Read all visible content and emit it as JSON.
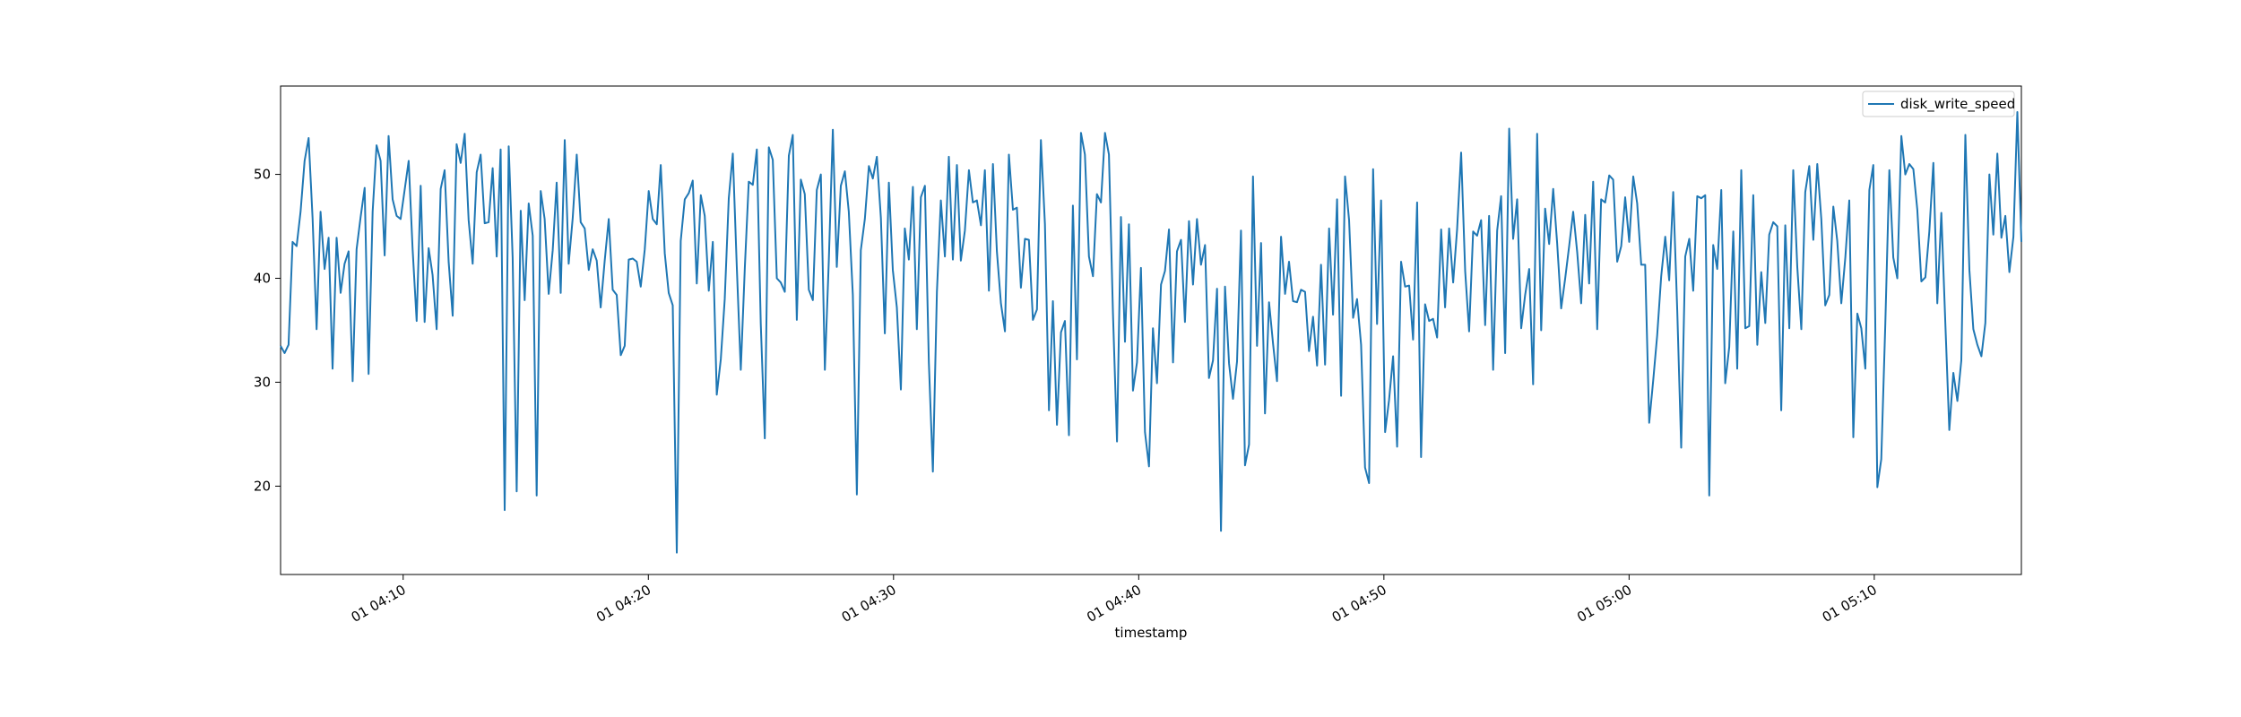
{
  "chart_data": {
    "type": "line",
    "title": "",
    "xlabel": "timestamp",
    "ylabel": "",
    "xlim": [
      "01 04:05",
      "01 05:16"
    ],
    "ylim": [
      11.5,
      58.5
    ],
    "x_tick_labels": [
      "01 04:10",
      "01 04:20",
      "01 04:30",
      "01 04:40",
      "01 04:50",
      "01 05:00",
      "01 05:10"
    ],
    "y_tick_labels": [
      "20",
      "30",
      "40",
      "50"
    ],
    "y_ticks": [
      20,
      30,
      40,
      50
    ],
    "grid": false,
    "legend_position": "top-right",
    "x_start": "01 04:05",
    "x_end": "01 05:16",
    "series": [
      {
        "name": "disk_write_speed",
        "color": "#1f77b4",
        "values": [
          33.5,
          32.8,
          33.6,
          43.5,
          43.1,
          46.4,
          51.3,
          53.5,
          45.8,
          35.1,
          46.4,
          40.9,
          43.9,
          31.3,
          43.9,
          38.6,
          41.4,
          42.6,
          30.1,
          42.8,
          45.9,
          48.7,
          30.8,
          46.4,
          52.8,
          51.3,
          42.2,
          53.7,
          47.6,
          46.0,
          45.7,
          48.5,
          51.3,
          42.8,
          35.9,
          48.9,
          35.8,
          42.9,
          40.3,
          35.1,
          48.6,
          50.4,
          41.6,
          36.4,
          52.9,
          51.1,
          53.9,
          45.6,
          41.4,
          50.2,
          51.9,
          45.3,
          45.4,
          50.6,
          42.1,
          52.4,
          17.7,
          52.7,
          42.0,
          19.5,
          46.5,
          37.9,
          47.2,
          44.1,
          19.1,
          48.4,
          45.7,
          38.5,
          42.7,
          49.2,
          38.6,
          53.3,
          41.4,
          45.8,
          51.9,
          45.4,
          44.8,
          40.8,
          42.8,
          41.7,
          37.2,
          41.7,
          45.7,
          38.9,
          38.4,
          32.6,
          33.5,
          41.8,
          41.9,
          41.6,
          39.2,
          42.8,
          48.4,
          45.7,
          45.2,
          50.9,
          42.4,
          38.6,
          37.4,
          13.6,
          43.6,
          47.6,
          48.2,
          49.4,
          39.5,
          48.0,
          46.0,
          38.8,
          43.5,
          28.8,
          32.2,
          38.0,
          47.7,
          52.0,
          41.2,
          31.2,
          41.0,
          49.3,
          49.0,
          52.4,
          35.6,
          24.6,
          52.6,
          51.4,
          40.0,
          39.6,
          38.7,
          51.8,
          53.8,
          36.0,
          49.5,
          48.1,
          38.9,
          37.9,
          48.5,
          50.0,
          31.2,
          41.7,
          54.3,
          41.1,
          48.9,
          50.3,
          46.4,
          38.4,
          19.2,
          42.7,
          45.7,
          50.8,
          49.6,
          51.7,
          45.8,
          34.7,
          49.2,
          40.8,
          37.2,
          29.3,
          44.8,
          41.8,
          48.8,
          35.1,
          47.8,
          48.9,
          31.9,
          21.4,
          38.7,
          47.5,
          42.1,
          51.7,
          41.8,
          50.9,
          41.7,
          44.6,
          50.4,
          47.3,
          47.5,
          45.1,
          50.4,
          38.8,
          51.0,
          42.6,
          37.6,
          34.9,
          51.9,
          46.6,
          46.8,
          39.1,
          43.8,
          43.7,
          36.0,
          37.0,
          53.3,
          45.2,
          27.3,
          37.8,
          25.9,
          34.8,
          35.9,
          24.9,
          47.0,
          32.2,
          54.0,
          51.9,
          42.1,
          40.2,
          48.1,
          47.3,
          54.0,
          51.9,
          36.6,
          24.3,
          45.9,
          33.9,
          45.2,
          29.2,
          31.9,
          41.0,
          25.2,
          21.9,
          35.2,
          29.9,
          39.4,
          40.7,
          44.7,
          31.9,
          42.6,
          43.7,
          35.8,
          45.5,
          39.4,
          45.7,
          41.3,
          43.2,
          30.4,
          32.1,
          39.0,
          15.7,
          39.2,
          31.8,
          28.4,
          32.0,
          44.6,
          22.0,
          24.0,
          49.8,
          33.5,
          43.4,
          27.0,
          37.7,
          33.7,
          30.1,
          44.0,
          38.5,
          41.6,
          37.8,
          37.7,
          38.9,
          38.7,
          33.0,
          36.3,
          31.6,
          41.3,
          31.7,
          44.8,
          36.5,
          47.6,
          28.7,
          49.8,
          45.6,
          36.2,
          38.0,
          33.6,
          21.8,
          20.3,
          50.5,
          35.6,
          47.5,
          25.2,
          28.3,
          32.5,
          23.8,
          41.6,
          39.2,
          39.3,
          34.1,
          47.3,
          22.8,
          37.5,
          35.9,
          36.1,
          34.3,
          44.7,
          37.2,
          44.8,
          39.6,
          44.7,
          52.1,
          40.7,
          34.9,
          44.5,
          44.1,
          45.6,
          35.5,
          46.0,
          31.2,
          44.6,
          47.9,
          32.8,
          54.4,
          43.8,
          47.6,
          35.2,
          38.4,
          40.9,
          29.8,
          53.9,
          35.0,
          46.7,
          43.3,
          48.6,
          43.4,
          37.1,
          40.0,
          43.1,
          46.4,
          42.5,
          37.6,
          46.1,
          39.5,
          49.3,
          35.1,
          47.6,
          47.3,
          49.9,
          49.5,
          41.6,
          43.1,
          47.8,
          43.5,
          49.8,
          47.2,
          41.3,
          41.3,
          26.1,
          30.2,
          34.5,
          40.2,
          44.0,
          39.8,
          48.3,
          36.9,
          23.7,
          42.1,
          43.8,
          38.8,
          47.9,
          47.7,
          48.0,
          19.1,
          43.2,
          40.9,
          48.5,
          29.9,
          33.4,
          44.5,
          31.3,
          50.4,
          35.2,
          35.4,
          48.0,
          33.6,
          40.6,
          35.7,
          44.2,
          45.4,
          45.0,
          27.3,
          45.1,
          35.2,
          50.4,
          41.1,
          35.1,
          48.3,
          50.8,
          43.7,
          51.0,
          45.7,
          37.4,
          38.4,
          46.9,
          43.6,
          37.6,
          42.0,
          47.5,
          24.7,
          36.6,
          35.2,
          31.3,
          48.5,
          50.9,
          19.9,
          22.6,
          35.6,
          50.4,
          42.0,
          40.0,
          53.7,
          50.0,
          51.0,
          50.5,
          46.6,
          39.7,
          40.1,
          44.5,
          51.1,
          37.6,
          46.3,
          35.6,
          25.4,
          30.9,
          28.2,
          32.1,
          53.8,
          40.8,
          35.1,
          33.6,
          32.5,
          35.7,
          50.0,
          44.2,
          52.0,
          43.9,
          46.0,
          40.6,
          44.0,
          56.0,
          43.5
        ]
      }
    ]
  }
}
